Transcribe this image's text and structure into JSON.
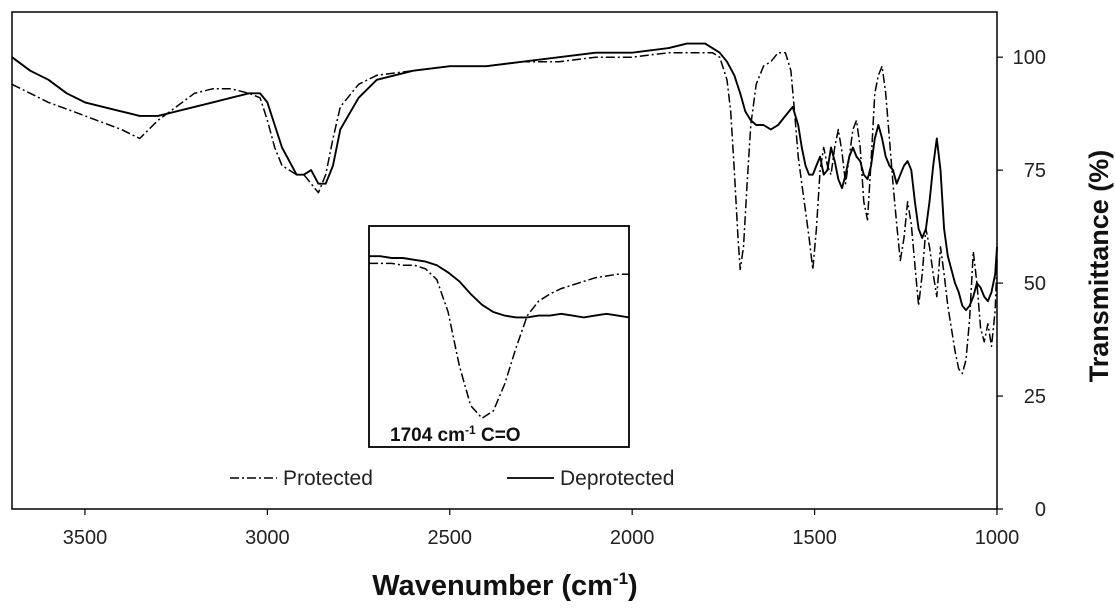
{
  "chart_data": {
    "type": "line",
    "xlabel": "Wavenumber (cm-1)",
    "xlabel_main": "Wavenumber (cm",
    "xlabel_sup": "-1",
    "xlabel_close": ")",
    "ylabel": "Transmittance (%)",
    "xlim": [
      3700,
      1000
    ],
    "ylim": [
      0,
      110
    ],
    "x_reversed": true,
    "y_axis_side": "right",
    "grid": false,
    "legend_placement": "bottom-left",
    "x_ticks": [
      3500,
      3000,
      2500,
      2000,
      1500,
      1000
    ],
    "x_tick_labels": [
      "3500",
      "3000",
      "2500",
      "2000",
      "1500",
      "1000"
    ],
    "y_ticks": [
      0,
      25,
      50,
      75,
      100
    ],
    "y_tick_labels": [
      "0",
      "25",
      "50",
      "75",
      "100"
    ],
    "series": [
      {
        "name": "Protected",
        "style": "dash-dot",
        "x": [
          3700,
          3650,
          3600,
          3500,
          3400,
          3350,
          3300,
          3250,
          3200,
          3150,
          3100,
          3050,
          3020,
          3000,
          2980,
          2960,
          2940,
          2920,
          2900,
          2880,
          2860,
          2840,
          2820,
          2800,
          2750,
          2700,
          2600,
          2500,
          2400,
          2300,
          2200,
          2100,
          2000,
          1900,
          1850,
          1800,
          1780,
          1760,
          1740,
          1730,
          1720,
          1710,
          1704,
          1695,
          1685,
          1675,
          1660,
          1640,
          1620,
          1600,
          1580,
          1565,
          1555,
          1545,
          1535,
          1525,
          1515,
          1505,
          1495,
          1485,
          1475,
          1465,
          1455,
          1445,
          1435,
          1425,
          1415,
          1405,
          1395,
          1385,
          1375,
          1365,
          1355,
          1345,
          1335,
          1325,
          1315,
          1305,
          1295,
          1285,
          1275,
          1265,
          1255,
          1245,
          1235,
          1225,
          1215,
          1205,
          1195,
          1185,
          1175,
          1165,
          1155,
          1145,
          1135,
          1125,
          1115,
          1105,
          1095,
          1085,
          1075,
          1065,
          1055,
          1045,
          1035,
          1025,
          1015,
          1005,
          1000
        ],
        "y": [
          94,
          92,
          90,
          87,
          84,
          82,
          86,
          89,
          92,
          93,
          93,
          92,
          91,
          86,
          80,
          76,
          75,
          74,
          74,
          72,
          70,
          74,
          82,
          89,
          94,
          96,
          97,
          98,
          98,
          99,
          99,
          100,
          100,
          101,
          101,
          101,
          101,
          100,
          95,
          88,
          75,
          60,
          53,
          58,
          72,
          85,
          94,
          98,
          99,
          101,
          101,
          97,
          88,
          78,
          72,
          66,
          60,
          53,
          62,
          75,
          80,
          76,
          74,
          80,
          84,
          79,
          72,
          78,
          84,
          86,
          80,
          68,
          64,
          77,
          92,
          96,
          98,
          92,
          82,
          72,
          63,
          55,
          60,
          68,
          63,
          54,
          45,
          52,
          62,
          58,
          52,
          47,
          58,
          52,
          45,
          40,
          35,
          31,
          30,
          33,
          42,
          57,
          50,
          40,
          37,
          41,
          36,
          44,
          55
        ]
      },
      {
        "name": "Deprotected",
        "style": "solid",
        "x": [
          3700,
          3650,
          3600,
          3550,
          3500,
          3450,
          3400,
          3350,
          3300,
          3250,
          3200,
          3150,
          3100,
          3050,
          3020,
          3000,
          2980,
          2960,
          2940,
          2920,
          2900,
          2880,
          2860,
          2840,
          2820,
          2800,
          2750,
          2700,
          2600,
          2500,
          2400,
          2300,
          2200,
          2100,
          2000,
          1900,
          1850,
          1800,
          1780,
          1760,
          1740,
          1720,
          1704,
          1690,
          1675,
          1660,
          1640,
          1620,
          1600,
          1580,
          1560,
          1545,
          1535,
          1525,
          1515,
          1505,
          1495,
          1485,
          1475,
          1465,
          1455,
          1445,
          1435,
          1425,
          1415,
          1405,
          1395,
          1385,
          1375,
          1365,
          1355,
          1345,
          1335,
          1325,
          1315,
          1305,
          1295,
          1285,
          1275,
          1265,
          1255,
          1245,
          1235,
          1225,
          1215,
          1205,
          1195,
          1185,
          1175,
          1165,
          1155,
          1145,
          1135,
          1125,
          1115,
          1105,
          1095,
          1085,
          1075,
          1065,
          1055,
          1045,
          1035,
          1025,
          1015,
          1005,
          1000
        ],
        "y": [
          100,
          97,
          95,
          92,
          90,
          89,
          88,
          87,
          87,
          88,
          89,
          90,
          91,
          92,
          92,
          90,
          85,
          80,
          77,
          74,
          74,
          75,
          72,
          72,
          76,
          84,
          91,
          95,
          97,
          98,
          98,
          99,
          100,
          101,
          101,
          102,
          103,
          103,
          102,
          101,
          99,
          96,
          92,
          88,
          86,
          85,
          85,
          84,
          85,
          87,
          89,
          85,
          80,
          76,
          74,
          74,
          76,
          78,
          74,
          75,
          80,
          77,
          73,
          71,
          74,
          78,
          80,
          78,
          77,
          74,
          73,
          76,
          82,
          85,
          82,
          78,
          76,
          75,
          72,
          74,
          76,
          77,
          75,
          68,
          62,
          60,
          62,
          68,
          76,
          82,
          75,
          62,
          56,
          53,
          50,
          48,
          45,
          44,
          45,
          47,
          50,
          49,
          47,
          46,
          48,
          52,
          58
        ]
      }
    ],
    "inset": {
      "annotation_main": "1704 cm",
      "annotation_sup": "-1",
      "annotation_tail": " C=O",
      "protected_profile": [
        0.13,
        0.13,
        0.13,
        0.14,
        0.14,
        0.16,
        0.22,
        0.4,
        0.7,
        0.92,
        0.99,
        0.95,
        0.8,
        0.6,
        0.42,
        0.34,
        0.3,
        0.27,
        0.25,
        0.23,
        0.21,
        0.2,
        0.19,
        0.19
      ],
      "deprotected_profile": [
        0.09,
        0.09,
        0.1,
        0.1,
        0.11,
        0.12,
        0.14,
        0.18,
        0.23,
        0.3,
        0.36,
        0.4,
        0.42,
        0.43,
        0.43,
        0.42,
        0.42,
        0.41,
        0.42,
        0.43,
        0.42,
        0.41,
        0.42,
        0.43
      ]
    }
  }
}
